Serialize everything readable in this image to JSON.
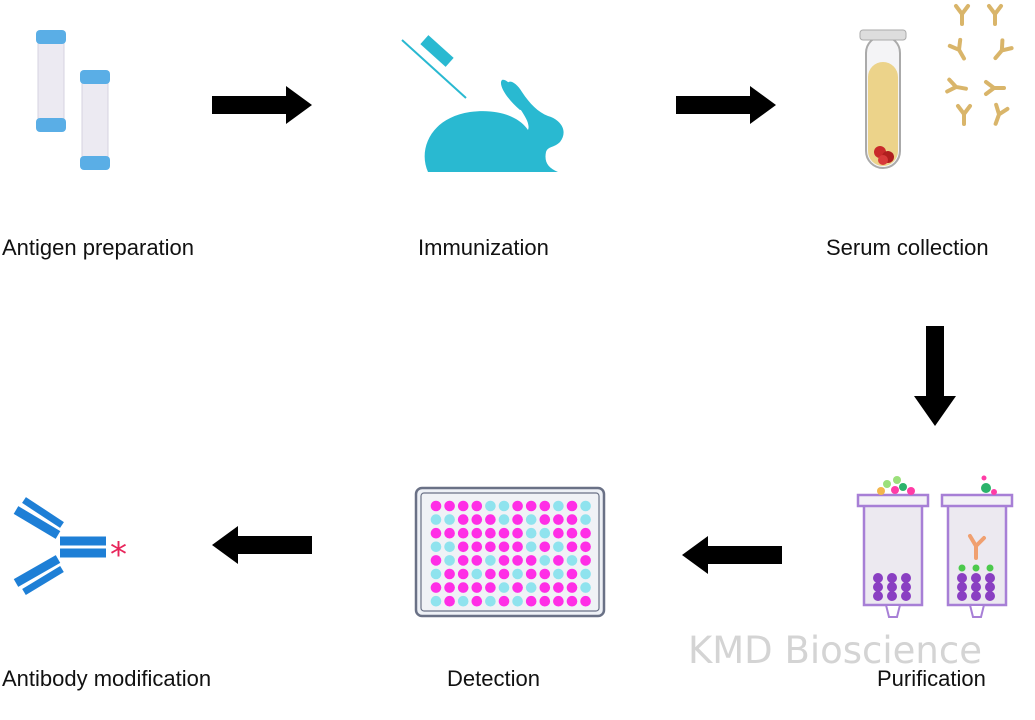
{
  "steps": {
    "antigen_preparation": "Antigen preparation",
    "immunization": "Immunization",
    "serum_collection": "Serum collection",
    "purification": "Purification",
    "detection": "Detection",
    "antibody_modification": "Antibody modification"
  },
  "watermark": "KMD Bioscience",
  "colors": {
    "arrow": "#000000",
    "rabbit": "#29b9d1",
    "vial_cap": "#5aaee6",
    "serum": "#ecd38a",
    "antibody_tan": "#d9b56a",
    "column": "#a77fd6",
    "bead": "#8a3fc2",
    "well_magenta": "#ff2ee6",
    "well_cyan": "#8fe3ee",
    "antibody_blue": "#1e7fd6",
    "label_star": "#e8245a"
  }
}
